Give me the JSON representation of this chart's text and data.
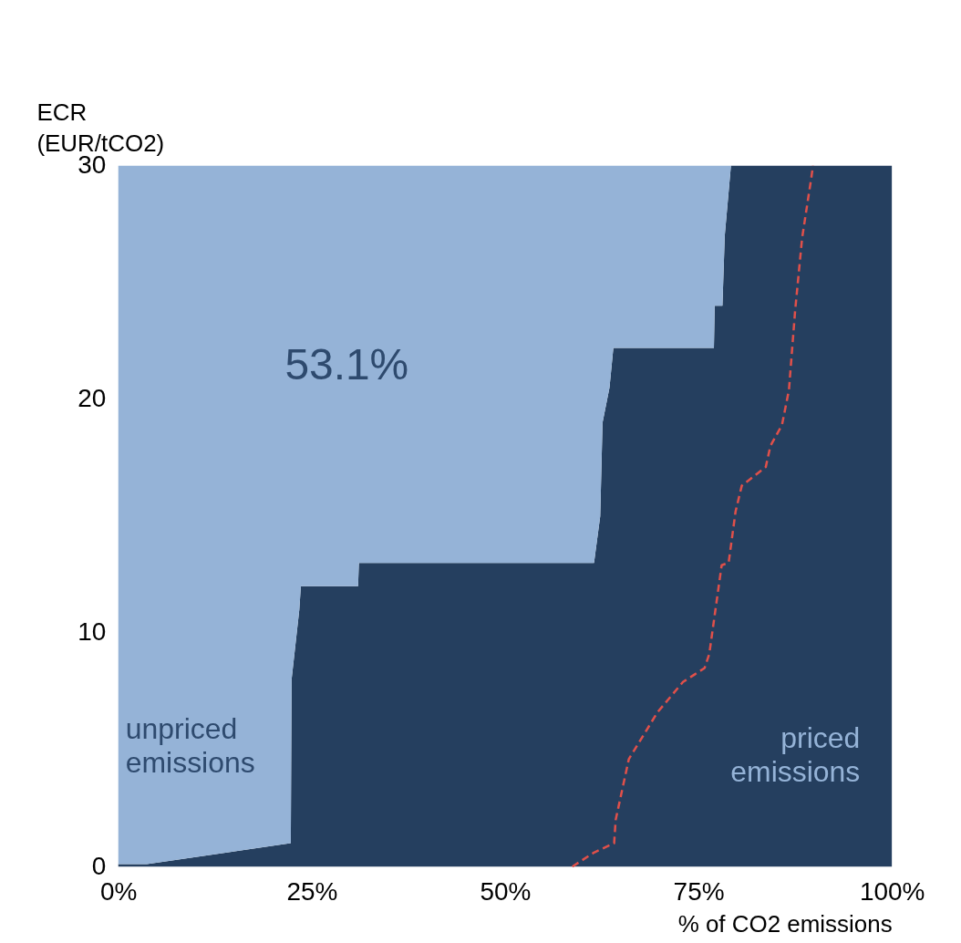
{
  "chart_data": {
    "type": "area",
    "stacked": true,
    "xlabel": "% of CO2 emissions",
    "ylabel": "ECR (EUR/tCO2)",
    "xlim": [
      0,
      100
    ],
    "ylim": [
      0,
      30
    ],
    "xticks": [
      {
        "value": 0,
        "label": "0%"
      },
      {
        "value": 25,
        "label": "25%"
      },
      {
        "value": 50,
        "label": "50%"
      },
      {
        "value": 75,
        "label": "75%"
      },
      {
        "value": 100,
        "label": "100%"
      }
    ],
    "yticks": [
      0,
      10,
      20,
      30
    ],
    "grid": false,
    "annotations": [
      "53.1%",
      "unpriced emissions",
      "priced emissions"
    ],
    "series": [
      {
        "color": "#253f5f",
        "x": [
          0,
          3.7,
          22.3,
          22.4,
          23.4,
          23.6,
          31,
          31.1,
          61.5,
          62.3,
          62.6,
          63.5,
          64,
          77,
          77.1,
          78.1,
          78.4,
          79.2,
          100
        ],
        "values": [
          0.1,
          0.1,
          1,
          8,
          11,
          12,
          12,
          13,
          13,
          15,
          19,
          20.5,
          22.2,
          22.2,
          24,
          24,
          27,
          30,
          30
        ]
      },
      {
        "color": "#95b3d7",
        "x": [
          0,
          3.7,
          22.3,
          22.4,
          23.4,
          23.6,
          31,
          31.1,
          61.5,
          62.3,
          62.6,
          63.5,
          64,
          77,
          77.1,
          78.1,
          78.4,
          79.2,
          100
        ],
        "values": [
          29.9,
          29.9,
          29,
          22,
          19,
          18,
          18,
          17,
          17,
          15,
          11,
          9.5,
          7.8,
          7.8,
          6,
          6,
          3,
          0,
          0
        ]
      },
      {
        "type": "line",
        "color": "#e0504a",
        "line_style": "dashed",
        "x": [
          58.7,
          61.5,
          64.1,
          64.3,
          66,
          69.7,
          73,
          75.8,
          76.4,
          78,
          78.9,
          79.8,
          80.6,
          83.7,
          84.3,
          85.8,
          86.7,
          87.5,
          88.4,
          89.6,
          89.8
        ],
        "values": [
          0,
          0.6,
          1,
          2,
          4.6,
          6.6,
          7.9,
          8.5,
          9.1,
          12.9,
          13,
          15.2,
          16.3,
          17.1,
          18,
          18.9,
          20.4,
          23.8,
          26.9,
          29.5,
          30
        ]
      }
    ]
  }
}
